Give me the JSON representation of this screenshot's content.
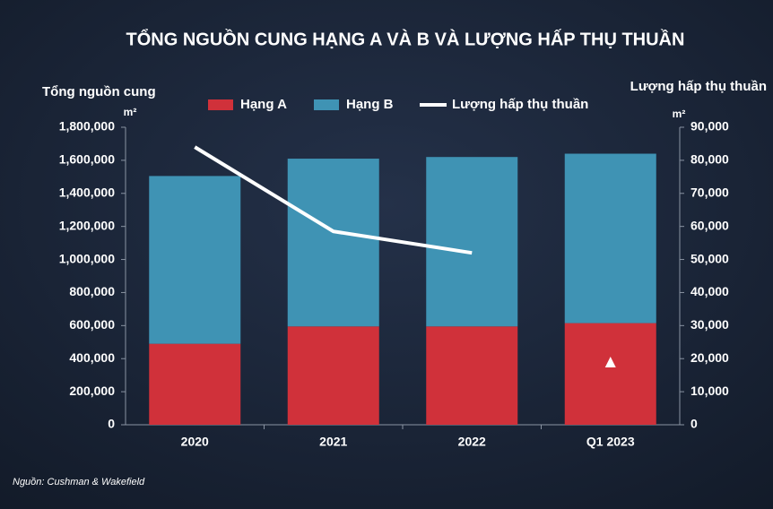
{
  "chart_data": {
    "type": "bar",
    "title": "TỔNG NGUỒN CUNG HẠNG A VÀ B VÀ LƯỢNG HẤP THỤ THUẦN",
    "y_label": "Tổng nguồn cung",
    "y_unit": "m²",
    "y2_label": "Lượng hấp thụ thuần",
    "y2_unit": "m²",
    "source": "Nguồn: Cushman & Wakefield",
    "categories": [
      "2020",
      "2021",
      "2022",
      "Q1 2023"
    ],
    "stacked": true,
    "series": [
      {
        "name": "Hạng A",
        "color": "#d0313a",
        "type": "bar",
        "values": [
          490000,
          595000,
          595000,
          615000
        ]
      },
      {
        "name": "Hạng B",
        "color": "#3f93b4",
        "type": "bar",
        "values": [
          1015000,
          1015000,
          1025000,
          1025000
        ]
      },
      {
        "name": "Lượng hấp thụ thuần",
        "color": "#ffffff",
        "type": "line",
        "axis": "y2",
        "values": [
          84000,
          58500,
          52000,
          null
        ],
        "highlight": {
          "index": 3,
          "value": 18700
        }
      }
    ],
    "ylim": [
      0,
      1800000
    ],
    "yticks": [
      {
        "value": 0,
        "label": "0"
      },
      {
        "value": 200000,
        "label": "200,000"
      },
      {
        "value": 400000,
        "label": "400,000"
      },
      {
        "value": 600000,
        "label": "600,000"
      },
      {
        "value": 800000,
        "label": "800,000"
      },
      {
        "value": 1000000,
        "label": "1,000,000"
      },
      {
        "value": 1200000,
        "label": "1,200,000"
      },
      {
        "value": 1400000,
        "label": "1,400,000"
      },
      {
        "value": 1600000,
        "label": "1,600,000"
      },
      {
        "value": 1800000,
        "label": "1,800,000"
      }
    ],
    "y2lim": [
      0,
      90000
    ],
    "y2ticks": [
      {
        "value": 0,
        "label": "0"
      },
      {
        "value": 10000,
        "label": "10,000"
      },
      {
        "value": 20000,
        "label": "20,000"
      },
      {
        "value": 30000,
        "label": "30,000"
      },
      {
        "value": 40000,
        "label": "40,000"
      },
      {
        "value": 50000,
        "label": "50,000"
      },
      {
        "value": 60000,
        "label": "60,000"
      },
      {
        "value": 70000,
        "label": "70,000"
      },
      {
        "value": 80000,
        "label": "80,000"
      },
      {
        "value": 90000,
        "label": "90,000"
      }
    ],
    "grid": false
  }
}
